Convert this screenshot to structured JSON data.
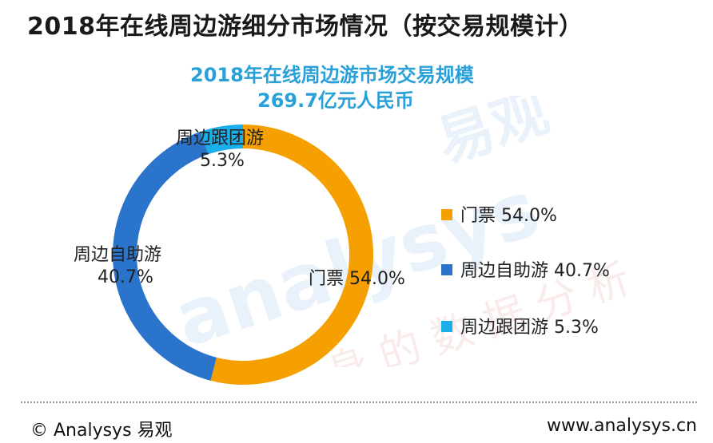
{
  "header": {
    "title": "2018年在线周边游细分市场情况（按交易规模计）"
  },
  "chart_data": {
    "type": "pie",
    "title": "2018年在线周边游市场交易规模",
    "subtitle": "269.7亿元人民币",
    "categories": [
      "门票",
      "周边自助游",
      "周边跟团游"
    ],
    "values": [
      54.0,
      40.7,
      5.3
    ],
    "colors": [
      "#f5a000",
      "#2a74cc",
      "#1aaeea"
    ],
    "value_labels": [
      "54.0%",
      "40.7%",
      "5.3%"
    ],
    "legend": {
      "placement": "right",
      "entries": [
        "门票 54.0%",
        "周边自助游 40.7%",
        "周边跟团游 5.3%"
      ]
    }
  },
  "watermark": {
    "brand_latin": "analysys",
    "brand_cn": "易观",
    "slogan": "你 身 的 数 据 分 析"
  },
  "footer": {
    "copyright": "© Analysys 易观",
    "url": "www.analysys.cn"
  }
}
